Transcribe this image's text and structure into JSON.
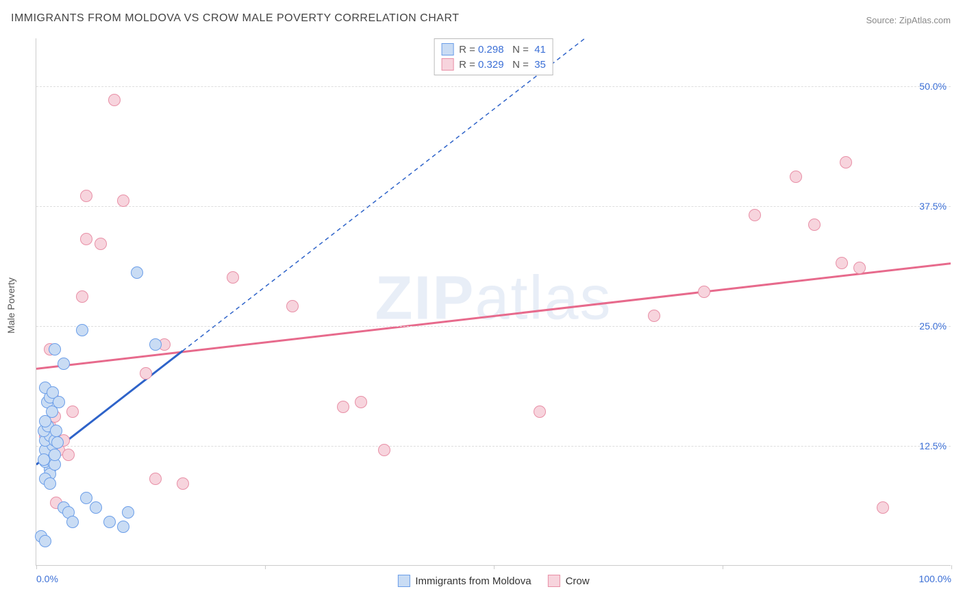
{
  "title": "IMMIGRANTS FROM MOLDOVA VS CROW MALE POVERTY CORRELATION CHART",
  "source_label": "Source: ",
  "source_name": "ZipAtlas.com",
  "ylabel": "Male Poverty",
  "watermark_bold": "ZIP",
  "watermark_rest": "atlas",
  "chart": {
    "type": "scatter",
    "xlim": [
      0,
      100
    ],
    "ylim": [
      0,
      55
    ],
    "x_ticks": [
      0,
      25,
      50,
      75,
      100
    ],
    "x_tick_labels": {
      "0": "0.0%",
      "100": "100.0%"
    },
    "y_grid": [
      12.5,
      25.0,
      37.5,
      50.0
    ],
    "y_tick_labels": [
      "12.5%",
      "25.0%",
      "37.5%",
      "50.0%"
    ],
    "background_color": "#ffffff",
    "grid_color": "#dddddd",
    "axis_color": "#cccccc",
    "label_color_x_left": "#3b6fd6",
    "label_color_x_right": "#3b6fd6",
    "label_color_y": "#3b6fd6",
    "title_color": "#444444",
    "title_fontsize": 16,
    "label_fontsize": 14
  },
  "series": {
    "moldova": {
      "label": "Immigrants from Moldova",
      "fill": "#c9dcf4",
      "stroke": "#6a9de8",
      "trend_color": "#2e63c9",
      "trend_dash": "6,5",
      "trend_solid_to_x": 16,
      "R": "0.298",
      "N": "41",
      "trend": {
        "x1": 0,
        "y1": 10.5,
        "x2": 60,
        "y2": 55
      },
      "points": [
        [
          0.5,
          3.0
        ],
        [
          1.0,
          2.5
        ],
        [
          1.5,
          10.0
        ],
        [
          1.0,
          10.8
        ],
        [
          1.2,
          11.5
        ],
        [
          1.5,
          11.0
        ],
        [
          1.0,
          12.0
        ],
        [
          1.8,
          12.5
        ],
        [
          1.0,
          13.0
        ],
        [
          1.5,
          13.5
        ],
        [
          0.8,
          14.0
        ],
        [
          1.3,
          14.5
        ],
        [
          1.0,
          15.0
        ],
        [
          1.5,
          9.5
        ],
        [
          2.0,
          10.5
        ],
        [
          2.0,
          13.0
        ],
        [
          1.2,
          17.0
        ],
        [
          1.5,
          17.5
        ],
        [
          1.0,
          18.5
        ],
        [
          1.8,
          18.0
        ],
        [
          2.5,
          17.0
        ],
        [
          2.0,
          11.5
        ],
        [
          3.0,
          6.0
        ],
        [
          3.5,
          5.5
        ],
        [
          4.0,
          4.5
        ],
        [
          5.5,
          7.0
        ],
        [
          6.5,
          6.0
        ],
        [
          8.0,
          4.5
        ],
        [
          9.5,
          4.0
        ],
        [
          10.0,
          5.5
        ],
        [
          2.0,
          22.5
        ],
        [
          3.0,
          21.0
        ],
        [
          5.0,
          24.5
        ],
        [
          13.0,
          23.0
        ],
        [
          11.0,
          30.5
        ],
        [
          1.0,
          9.0
        ],
        [
          1.5,
          8.5
        ],
        [
          0.8,
          11.0
        ],
        [
          2.2,
          14.0
        ],
        [
          1.7,
          16.0
        ],
        [
          2.3,
          12.8
        ]
      ]
    },
    "crow": {
      "label": "Crow",
      "fill": "#f7d4dd",
      "stroke": "#e88fa6",
      "trend_color": "#e76a8c",
      "trend_dash": "",
      "R": "0.329",
      "N": "35",
      "trend": {
        "x1": 0,
        "y1": 20.5,
        "x2": 100,
        "y2": 31.5
      },
      "points": [
        [
          1.0,
          13.5
        ],
        [
          1.5,
          14.5
        ],
        [
          2.0,
          15.5
        ],
        [
          2.5,
          12.0
        ],
        [
          3.0,
          13.0
        ],
        [
          3.5,
          11.5
        ],
        [
          4.0,
          16.0
        ],
        [
          1.5,
          22.5
        ],
        [
          5.0,
          28.0
        ],
        [
          5.5,
          38.5
        ],
        [
          12.0,
          20.0
        ],
        [
          14.0,
          23.0
        ],
        [
          8.5,
          48.5
        ],
        [
          9.5,
          38.0
        ],
        [
          5.5,
          34.0
        ],
        [
          7.0,
          33.5
        ],
        [
          13.0,
          9.0
        ],
        [
          16.0,
          8.5
        ],
        [
          21.5,
          30.0
        ],
        [
          28.0,
          27.0
        ],
        [
          35.5,
          17.0
        ],
        [
          33.5,
          16.5
        ],
        [
          38.0,
          12.0
        ],
        [
          55.0,
          16.0
        ],
        [
          67.5,
          26.0
        ],
        [
          73.0,
          28.5
        ],
        [
          78.5,
          36.5
        ],
        [
          83.0,
          40.5
        ],
        [
          85.0,
          35.5
        ],
        [
          88.0,
          31.5
        ],
        [
          90.0,
          31.0
        ],
        [
          88.5,
          42.0
        ],
        [
          92.5,
          6.0
        ],
        [
          1.8,
          17.5
        ],
        [
          2.2,
          6.5
        ]
      ]
    }
  },
  "legend_top": {
    "R_label": "R = ",
    "N_label": "N = ",
    "text_color": "#555555",
    "value_color": "#3b6fd6"
  }
}
